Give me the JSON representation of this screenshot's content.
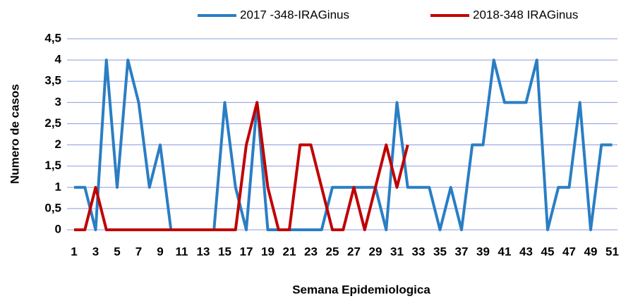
{
  "chart_data": {
    "type": "line",
    "xlabel": "Semana Epidemiologica",
    "ylabel": "Numero de casos",
    "categories": [
      "1",
      null,
      "3",
      null,
      "5",
      null,
      "7",
      null,
      "9",
      null,
      "11",
      null,
      "13",
      null,
      "15",
      null,
      "17",
      null,
      "19",
      null,
      "21",
      null,
      "23",
      null,
      "25",
      null,
      "27",
      null,
      "29",
      null,
      "31",
      null,
      "33",
      null,
      "35",
      null,
      "37",
      null,
      "39",
      null,
      "41",
      null,
      "43",
      null,
      "45",
      null,
      "47",
      null,
      "49",
      null,
      "51"
    ],
    "series": [
      {
        "name": "2017 -348-IRAGinus",
        "color": "#2a7ec3",
        "values": [
          1,
          1,
          0,
          4,
          1,
          4,
          3,
          1,
          2,
          0,
          0,
          0,
          0,
          0,
          3,
          1,
          0,
          3,
          0,
          0,
          0,
          0,
          0,
          0,
          1,
          1,
          1,
          1,
          1,
          0,
          3,
          1,
          1,
          1,
          0,
          1,
          0,
          2,
          2,
          4,
          3,
          3,
          3,
          4,
          0,
          1,
          1,
          3,
          0,
          2,
          2
        ]
      },
      {
        "name": "2018-348 IRAGinus",
        "color": "#c00000",
        "values": [
          0,
          0,
          1,
          0,
          0,
          0,
          0,
          0,
          0,
          0,
          0,
          0,
          0,
          0,
          0,
          0,
          2,
          3,
          1,
          0,
          0,
          2,
          2,
          1,
          0,
          0,
          1,
          0,
          1,
          2,
          1,
          2,
          null,
          null,
          null,
          null,
          null,
          null,
          null,
          null,
          null,
          null,
          null,
          null,
          null,
          null,
          null,
          null,
          null,
          null,
          null
        ]
      }
    ],
    "ylim": [
      0,
      4.5
    ],
    "yticks": [
      0,
      {
        "value": 0.5,
        "label": "0,5"
      },
      1,
      {
        "value": 1.5,
        "label": "1,5"
      },
      2,
      {
        "value": 2.5,
        "label": "2,5"
      },
      3,
      {
        "value": 3.5,
        "label": "3,5"
      },
      4,
      {
        "value": 4.5,
        "label": "4,5"
      }
    ],
    "grid": true,
    "legend": "top"
  }
}
